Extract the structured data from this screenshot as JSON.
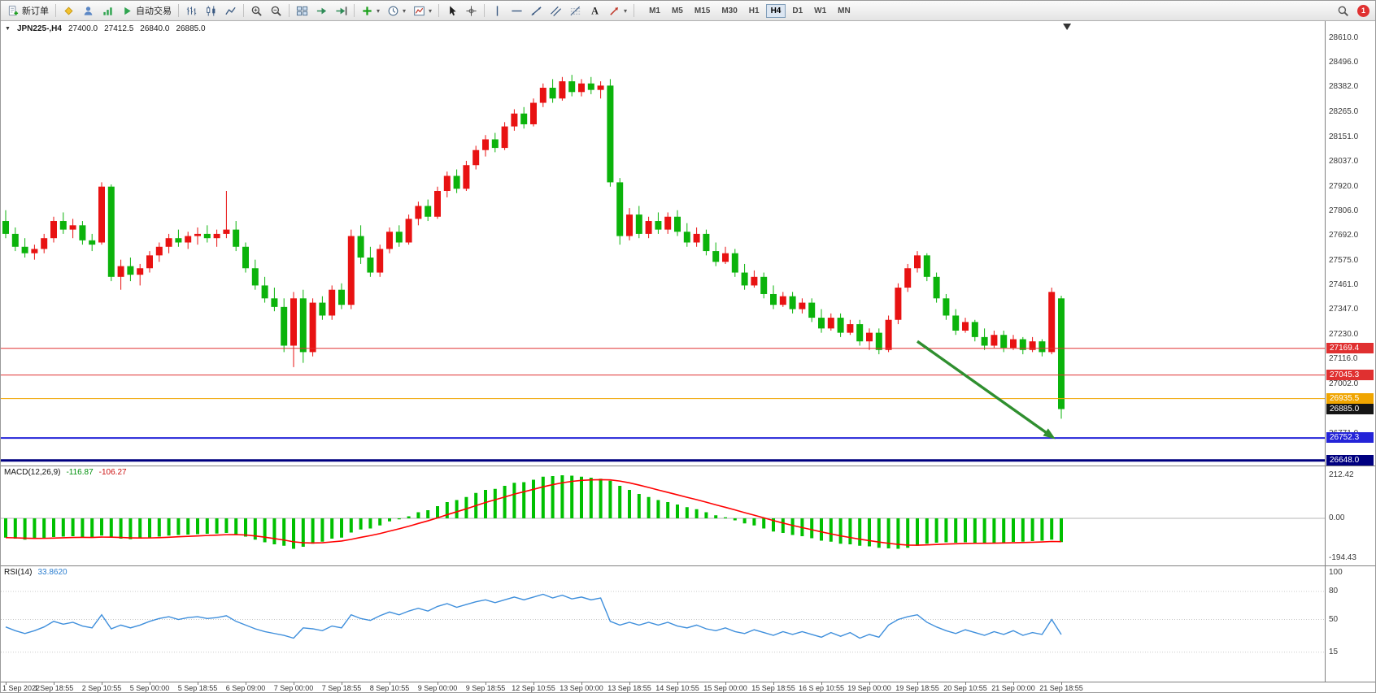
{
  "toolbar": {
    "new_order_label": "新订单",
    "auto_trading_label": "自动交易",
    "left_icons": [
      "metaeditor-icon",
      "profile-icon",
      "signal-icon"
    ],
    "chart_type_icons": [
      "bar-chart-icon",
      "candlestick-icon",
      "line-chart-icon"
    ],
    "zoom_icons": [
      "zoom-in-icon",
      "zoom-out-icon"
    ],
    "window_icons": [
      "tile-windows-icon",
      "auto-scroll-icon",
      "chart-shift-icon"
    ],
    "insert_icons": [
      "indicators-icon",
      "periods-icon",
      "templates-icon"
    ],
    "pointer_icons": [
      "cursor-icon",
      "crosshair-icon"
    ],
    "drawing_icons": [
      "vline-icon",
      "hline-icon",
      "trendline-icon",
      "channel-icon",
      "fibonacci-icon",
      "text-icon",
      "arrows-icon"
    ],
    "timeframes": [
      "M1",
      "M5",
      "M15",
      "M30",
      "H1",
      "H4",
      "D1",
      "W1",
      "MN"
    ],
    "active_timeframe": "H4",
    "right_icons": [
      "search-icon"
    ],
    "notification_count": "1"
  },
  "chart": {
    "symbol_period": "JPN225-,H4",
    "ohlc": {
      "open": "27400.0",
      "high": "27412.5",
      "low": "26840.0",
      "close": "26885.0"
    },
    "price_axis_labels": [
      "28610.0",
      "28496.0",
      "28382.0",
      "28265.0",
      "28151.0",
      "28037.0",
      "27920.0",
      "27806.0",
      "27692.0",
      "27575.0",
      "27461.0",
      "27347.0",
      "27230.0",
      "27116.0",
      "27002.0",
      "26771.0"
    ],
    "levels": [
      {
        "label": "27169.4",
        "value": 27169.4,
        "color": "#e03030",
        "line_width": 1
      },
      {
        "label": "27045.3",
        "value": 27045.3,
        "color": "#e03030",
        "line_width": 1
      },
      {
        "label": "26935.5",
        "value": 26935.5,
        "color": "#f0a500",
        "line_width": 1
      },
      {
        "label": "26885.0",
        "value": 26885.0,
        "color": "#151515",
        "line_width": 0
      },
      {
        "label": "26752.3",
        "value": 26752.3,
        "color": "#2424d8",
        "line_width": 2
      },
      {
        "label": "26648.0",
        "value": 26648.0,
        "color": "#000080",
        "line_width": 3
      }
    ],
    "colors": {
      "up": "#e81212",
      "down": "#0bb30b",
      "macd_hist": "#00c000",
      "macd_signal": "#ff0000",
      "rsi_line": "#3f8fdc",
      "arrow": "#2f8f2f",
      "background": "#ffffff"
    }
  },
  "chart_data": {
    "type": "candlestick",
    "symbol": "JPN225-",
    "timeframe": "H4",
    "candles": [
      [
        27760,
        27810,
        27680,
        27700
      ],
      [
        27700,
        27730,
        27620,
        27640
      ],
      [
        27640,
        27680,
        27590,
        27610
      ],
      [
        27610,
        27650,
        27580,
        27630
      ],
      [
        27630,
        27700,
        27610,
        27680
      ],
      [
        27680,
        27780,
        27660,
        27760
      ],
      [
        27760,
        27800,
        27700,
        27720
      ],
      [
        27720,
        27770,
        27680,
        27740
      ],
      [
        27740,
        27760,
        27650,
        27670
      ],
      [
        27670,
        27700,
        27620,
        27650
      ],
      [
        27660,
        27940,
        27650,
        27920
      ],
      [
        27920,
        27930,
        27480,
        27500
      ],
      [
        27500,
        27580,
        27440,
        27550
      ],
      [
        27550,
        27590,
        27480,
        27510
      ],
      [
        27510,
        27560,
        27460,
        27540
      ],
      [
        27540,
        27620,
        27520,
        27600
      ],
      [
        27600,
        27660,
        27570,
        27640
      ],
      [
        27640,
        27700,
        27610,
        27680
      ],
      [
        27680,
        27720,
        27640,
        27660
      ],
      [
        27660,
        27710,
        27630,
        27690
      ],
      [
        27690,
        27730,
        27650,
        27700
      ],
      [
        27700,
        27740,
        27660,
        27680
      ],
      [
        27680,
        27720,
        27640,
        27700
      ],
      [
        27700,
        27900,
        27680,
        27720
      ],
      [
        27720,
        27760,
        27620,
        27640
      ],
      [
        27640,
        27660,
        27520,
        27540
      ],
      [
        27540,
        27580,
        27440,
        27460
      ],
      [
        27460,
        27500,
        27380,
        27400
      ],
      [
        27400,
        27450,
        27340,
        27360
      ],
      [
        27360,
        27400,
        27150,
        27180
      ],
      [
        27180,
        27430,
        27080,
        27400
      ],
      [
        27400,
        27440,
        27100,
        27150
      ],
      [
        27150,
        27400,
        27130,
        27380
      ],
      [
        27380,
        27410,
        27300,
        27320
      ],
      [
        27320,
        27460,
        27300,
        27440
      ],
      [
        27440,
        27470,
        27350,
        27370
      ],
      [
        27370,
        27720,
        27350,
        27690
      ],
      [
        27690,
        27740,
        27560,
        27590
      ],
      [
        27590,
        27640,
        27500,
        27520
      ],
      [
        27520,
        27650,
        27500,
        27630
      ],
      [
        27630,
        27730,
        27610,
        27710
      ],
      [
        27710,
        27740,
        27640,
        27660
      ],
      [
        27660,
        27790,
        27650,
        27770
      ],
      [
        27770,
        27850,
        27740,
        27830
      ],
      [
        27830,
        27860,
        27760,
        27780
      ],
      [
        27780,
        27920,
        27770,
        27900
      ],
      [
        27900,
        27990,
        27870,
        27970
      ],
      [
        27970,
        28000,
        27890,
        27910
      ],
      [
        27910,
        28040,
        27900,
        28020
      ],
      [
        28020,
        28110,
        28000,
        28090
      ],
      [
        28090,
        28160,
        28060,
        28140
      ],
      [
        28140,
        28170,
        28080,
        28100
      ],
      [
        28100,
        28220,
        28090,
        28200
      ],
      [
        28200,
        28280,
        28180,
        28260
      ],
      [
        28260,
        28290,
        28190,
        28210
      ],
      [
        28210,
        28330,
        28200,
        28310
      ],
      [
        28310,
        28400,
        28290,
        28380
      ],
      [
        28380,
        28420,
        28310,
        28330
      ],
      [
        28330,
        28430,
        28320,
        28410
      ],
      [
        28410,
        28440,
        28340,
        28360
      ],
      [
        28360,
        28420,
        28340,
        28400
      ],
      [
        28400,
        28430,
        28350,
        28370
      ],
      [
        28370,
        28410,
        28330,
        28390
      ],
      [
        28390,
        28420,
        27920,
        27940
      ],
      [
        27940,
        27960,
        27650,
        27690
      ],
      [
        27690,
        27820,
        27670,
        27790
      ],
      [
        27790,
        27830,
        27680,
        27700
      ],
      [
        27700,
        27780,
        27680,
        27760
      ],
      [
        27760,
        27800,
        27700,
        27720
      ],
      [
        27720,
        27800,
        27700,
        27780
      ],
      [
        27780,
        27810,
        27690,
        27710
      ],
      [
        27710,
        27750,
        27640,
        27660
      ],
      [
        27660,
        27730,
        27640,
        27700
      ],
      [
        27700,
        27720,
        27600,
        27620
      ],
      [
        27620,
        27660,
        27550,
        27570
      ],
      [
        27570,
        27640,
        27560,
        27610
      ],
      [
        27610,
        27630,
        27500,
        27520
      ],
      [
        27520,
        27560,
        27440,
        27460
      ],
      [
        27460,
        27530,
        27450,
        27500
      ],
      [
        27500,
        27520,
        27400,
        27420
      ],
      [
        27420,
        27460,
        27350,
        27370
      ],
      [
        27370,
        27430,
        27360,
        27410
      ],
      [
        27410,
        27430,
        27330,
        27350
      ],
      [
        27350,
        27400,
        27330,
        27380
      ],
      [
        27380,
        27400,
        27290,
        27310
      ],
      [
        27310,
        27350,
        27240,
        27260
      ],
      [
        27260,
        27330,
        27250,
        27310
      ],
      [
        27310,
        27330,
        27220,
        27240
      ],
      [
        27240,
        27300,
        27230,
        27280
      ],
      [
        27280,
        27300,
        27180,
        27200
      ],
      [
        27200,
        27260,
        27160,
        27240
      ],
      [
        27240,
        27260,
        27140,
        27160
      ],
      [
        27160,
        27320,
        27150,
        27300
      ],
      [
        27300,
        27470,
        27280,
        27450
      ],
      [
        27450,
        27560,
        27430,
        27540
      ],
      [
        27540,
        27620,
        27520,
        27600
      ],
      [
        27600,
        27610,
        27480,
        27500
      ],
      [
        27500,
        27520,
        27380,
        27400
      ],
      [
        27400,
        27420,
        27300,
        27320
      ],
      [
        27320,
        27350,
        27230,
        27250
      ],
      [
        27250,
        27310,
        27240,
        27290
      ],
      [
        27290,
        27300,
        27200,
        27220
      ],
      [
        27220,
        27260,
        27160,
        27180
      ],
      [
        27180,
        27250,
        27170,
        27230
      ],
      [
        27230,
        27250,
        27150,
        27170
      ],
      [
        27170,
        27230,
        27160,
        27210
      ],
      [
        27210,
        27220,
        27140,
        27160
      ],
      [
        27160,
        27220,
        27150,
        27200
      ],
      [
        27200,
        27210,
        27130,
        27150
      ],
      [
        27150,
        27450,
        27140,
        27430
      ],
      [
        27400,
        27412.5,
        26840,
        26885
      ]
    ],
    "time_labels": [
      "1 Sep 2022",
      "1 Sep 18:55",
      "2 Sep 10:55",
      "5 Sep 00:00",
      "5 Sep 18:55",
      "6 Sep 09:00",
      "7 Sep 00:00",
      "7 Sep 18:55",
      "8 Sep 10:55",
      "9 Sep 00:00",
      "9 Sep 18:55",
      "12 Sep 10:55",
      "13 Sep 00:00",
      "13 Sep 18:55",
      "14 Sep 10:55",
      "15 Sep 00:00",
      "15 Sep 18:55",
      "16 S ep 10:55",
      "19 Sep 00:00",
      "19 Sep 18:55",
      "20 Sep 10:55",
      "21 Sep 00:00",
      "21 Sep 18:55"
    ],
    "macd": {
      "label": "MACD(12,26,9)",
      "value": -116.87,
      "value_text": "-116.87",
      "signal": -106.27,
      "signal_text": "-106.27",
      "axis_labels": [
        "212.42",
        "0.00",
        "-194.43"
      ],
      "hist": [
        -95,
        -100,
        -105,
        -102,
        -98,
        -92,
        -90,
        -88,
        -92,
        -96,
        -85,
        -95,
        -100,
        -103,
        -100,
        -95,
        -90,
        -85,
        -82,
        -80,
        -78,
        -76,
        -75,
        -72,
        -78,
        -90,
        -105,
        -118,
        -128,
        -135,
        -150,
        -140,
        -125,
        -115,
        -100,
        -95,
        -70,
        -55,
        -50,
        -35,
        -15,
        -5,
        10,
        30,
        40,
        60,
        80,
        90,
        105,
        125,
        140,
        145,
        160,
        175,
        178,
        190,
        205,
        208,
        212,
        210,
        205,
        200,
        195,
        185,
        160,
        140,
        120,
        105,
        90,
        80,
        68,
        55,
        45,
        30,
        15,
        5,
        -10,
        -25,
        -35,
        -50,
        -65,
        -72,
        -82,
        -88,
        -98,
        -110,
        -115,
        -125,
        -128,
        -135,
        -138,
        -145,
        -148,
        -150,
        -145,
        -135,
        -125,
        -120,
        -118,
        -120,
        -118,
        -120,
        -122,
        -120,
        -118,
        -116,
        -115,
        -112,
        -110,
        -105,
        -117
      ]
    },
    "rsi": {
      "label": "RSI(14)",
      "value": 33.862,
      "value_text": "33.8620",
      "axis_labels": [
        "100",
        "80",
        "50",
        "15"
      ],
      "values": [
        42,
        38,
        35,
        38,
        42,
        48,
        45,
        47,
        43,
        41,
        55,
        40,
        44,
        41,
        44,
        48,
        51,
        53,
        50,
        52,
        53,
        51,
        52,
        54,
        48,
        44,
        40,
        37,
        35,
        33,
        30,
        41,
        40,
        38,
        43,
        41,
        55,
        51,
        49,
        54,
        58,
        55,
        59,
        62,
        59,
        64,
        67,
        63,
        66,
        69,
        71,
        68,
        71,
        74,
        71,
        74,
        77,
        73,
        76,
        72,
        74,
        71,
        73,
        48,
        44,
        47,
        44,
        47,
        44,
        47,
        43,
        41,
        44,
        40,
        38,
        41,
        37,
        35,
        39,
        36,
        33,
        37,
        34,
        37,
        34,
        31,
        36,
        32,
        36,
        30,
        34,
        31,
        44,
        50,
        53,
        55,
        47,
        42,
        38,
        35,
        39,
        36,
        33,
        37,
        34,
        38,
        33,
        36,
        34,
        50,
        33.86
      ]
    },
    "annotations": [
      {
        "type": "arrow",
        "from_index": 95,
        "from_price": 27200,
        "to_index": 109.4,
        "to_price": 26745,
        "color": "#2f8f2f"
      }
    ],
    "shift_marker_index": 110.6
  }
}
